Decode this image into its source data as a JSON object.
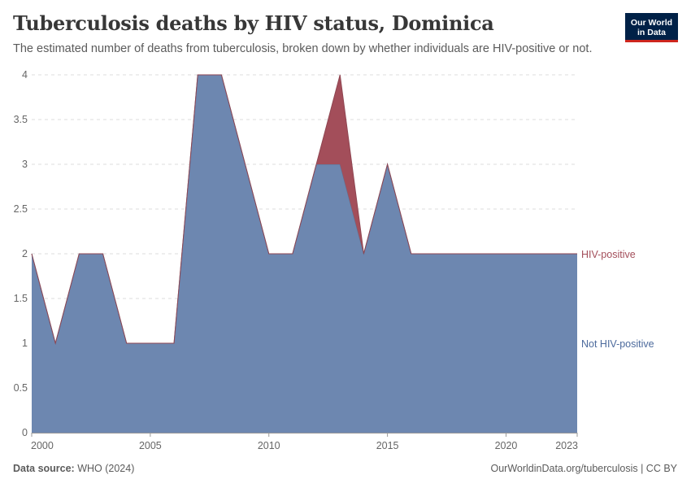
{
  "header": {
    "title": "Tuberculosis deaths by HIV status, Dominica",
    "subtitle": "The estimated number of deaths from tuberculosis, broken down by whether individuals are HIV-positive or not."
  },
  "logo": {
    "line1": "Our World",
    "line2": "in Data"
  },
  "footer": {
    "source_label": "Data source:",
    "source_value": "WHO (2024)",
    "credit": "OurWorldinData.org/tuberculosis | CC BY"
  },
  "colors": {
    "not_hiv": "#6d87b0",
    "hiv": "#a34e5a",
    "grid": "#dddddd",
    "axis": "#666666"
  },
  "chart_data": {
    "type": "area",
    "stacked": true,
    "x": [
      2000,
      2001,
      2002,
      2003,
      2004,
      2005,
      2006,
      2007,
      2008,
      2009,
      2010,
      2011,
      2012,
      2013,
      2014,
      2015,
      2016,
      2017,
      2018,
      2019,
      2020,
      2021,
      2022,
      2023
    ],
    "xlim": [
      2000,
      2023
    ],
    "x_ticks": [
      2000,
      2005,
      2010,
      2015,
      2020,
      2023
    ],
    "ylim": [
      0,
      4
    ],
    "y_ticks": [
      0,
      0.5,
      1,
      1.5,
      2,
      2.5,
      3,
      3.5,
      4
    ],
    "grid": true,
    "series": [
      {
        "name": "Not HIV-positive",
        "color": "#6d87b0",
        "values": [
          2,
          1,
          2,
          2,
          1,
          1,
          1,
          4,
          4,
          3,
          2,
          2,
          3,
          3,
          2,
          3,
          2,
          2,
          2,
          2,
          2,
          2,
          2,
          2
        ]
      },
      {
        "name": "HIV-positive",
        "color": "#a34e5a",
        "values": [
          0,
          0,
          0,
          0,
          0,
          0,
          0,
          0,
          0,
          0,
          0,
          0,
          0,
          1,
          0,
          0,
          0,
          0,
          0,
          0,
          0,
          0,
          0,
          0
        ]
      }
    ]
  }
}
